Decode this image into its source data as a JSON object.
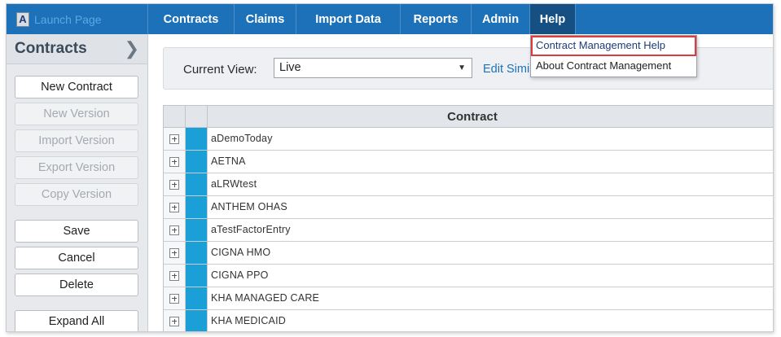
{
  "brand": {
    "label": "Launch Page",
    "logo": "A"
  },
  "nav": [
    {
      "label": "Contracts",
      "active": false
    },
    {
      "label": "Claims",
      "active": false
    },
    {
      "label": "Import Data",
      "active": false
    },
    {
      "label": "Reports",
      "active": false
    },
    {
      "label": "Admin",
      "active": false
    },
    {
      "label": "Help",
      "active": true
    }
  ],
  "help_menu": {
    "items": [
      {
        "label": "Contract Management Help",
        "highlighted": true
      },
      {
        "label": "About Contract Management",
        "highlighted": false
      }
    ]
  },
  "sidebar": {
    "title": "Contracts",
    "buttons": {
      "new_contract": "New Contract",
      "new_version": "New Version",
      "import_version": "Import Version",
      "export_version": "Export Version",
      "copy_version": "Copy Version",
      "save": "Save",
      "cancel": "Cancel",
      "delete": "Delete",
      "expand_all": "Expand All"
    }
  },
  "view": {
    "label": "Current View:",
    "selected": "Live",
    "edit_link": "Edit Simi"
  },
  "table": {
    "header": "Contract",
    "rows": [
      "aDemoToday",
      "AETNA",
      "aLRWtest",
      "ANTHEM OHAS",
      "aTestFactorEntry",
      "CIGNA HMO",
      "CIGNA PPO",
      "KHA MANAGED CARE",
      "KHA MEDICAID"
    ]
  },
  "colors": {
    "nav_bg": "#1d71b8",
    "nav_active": "#164f82",
    "row_marker": "#1aa0d6",
    "highlight_border": "#e23a3a"
  }
}
